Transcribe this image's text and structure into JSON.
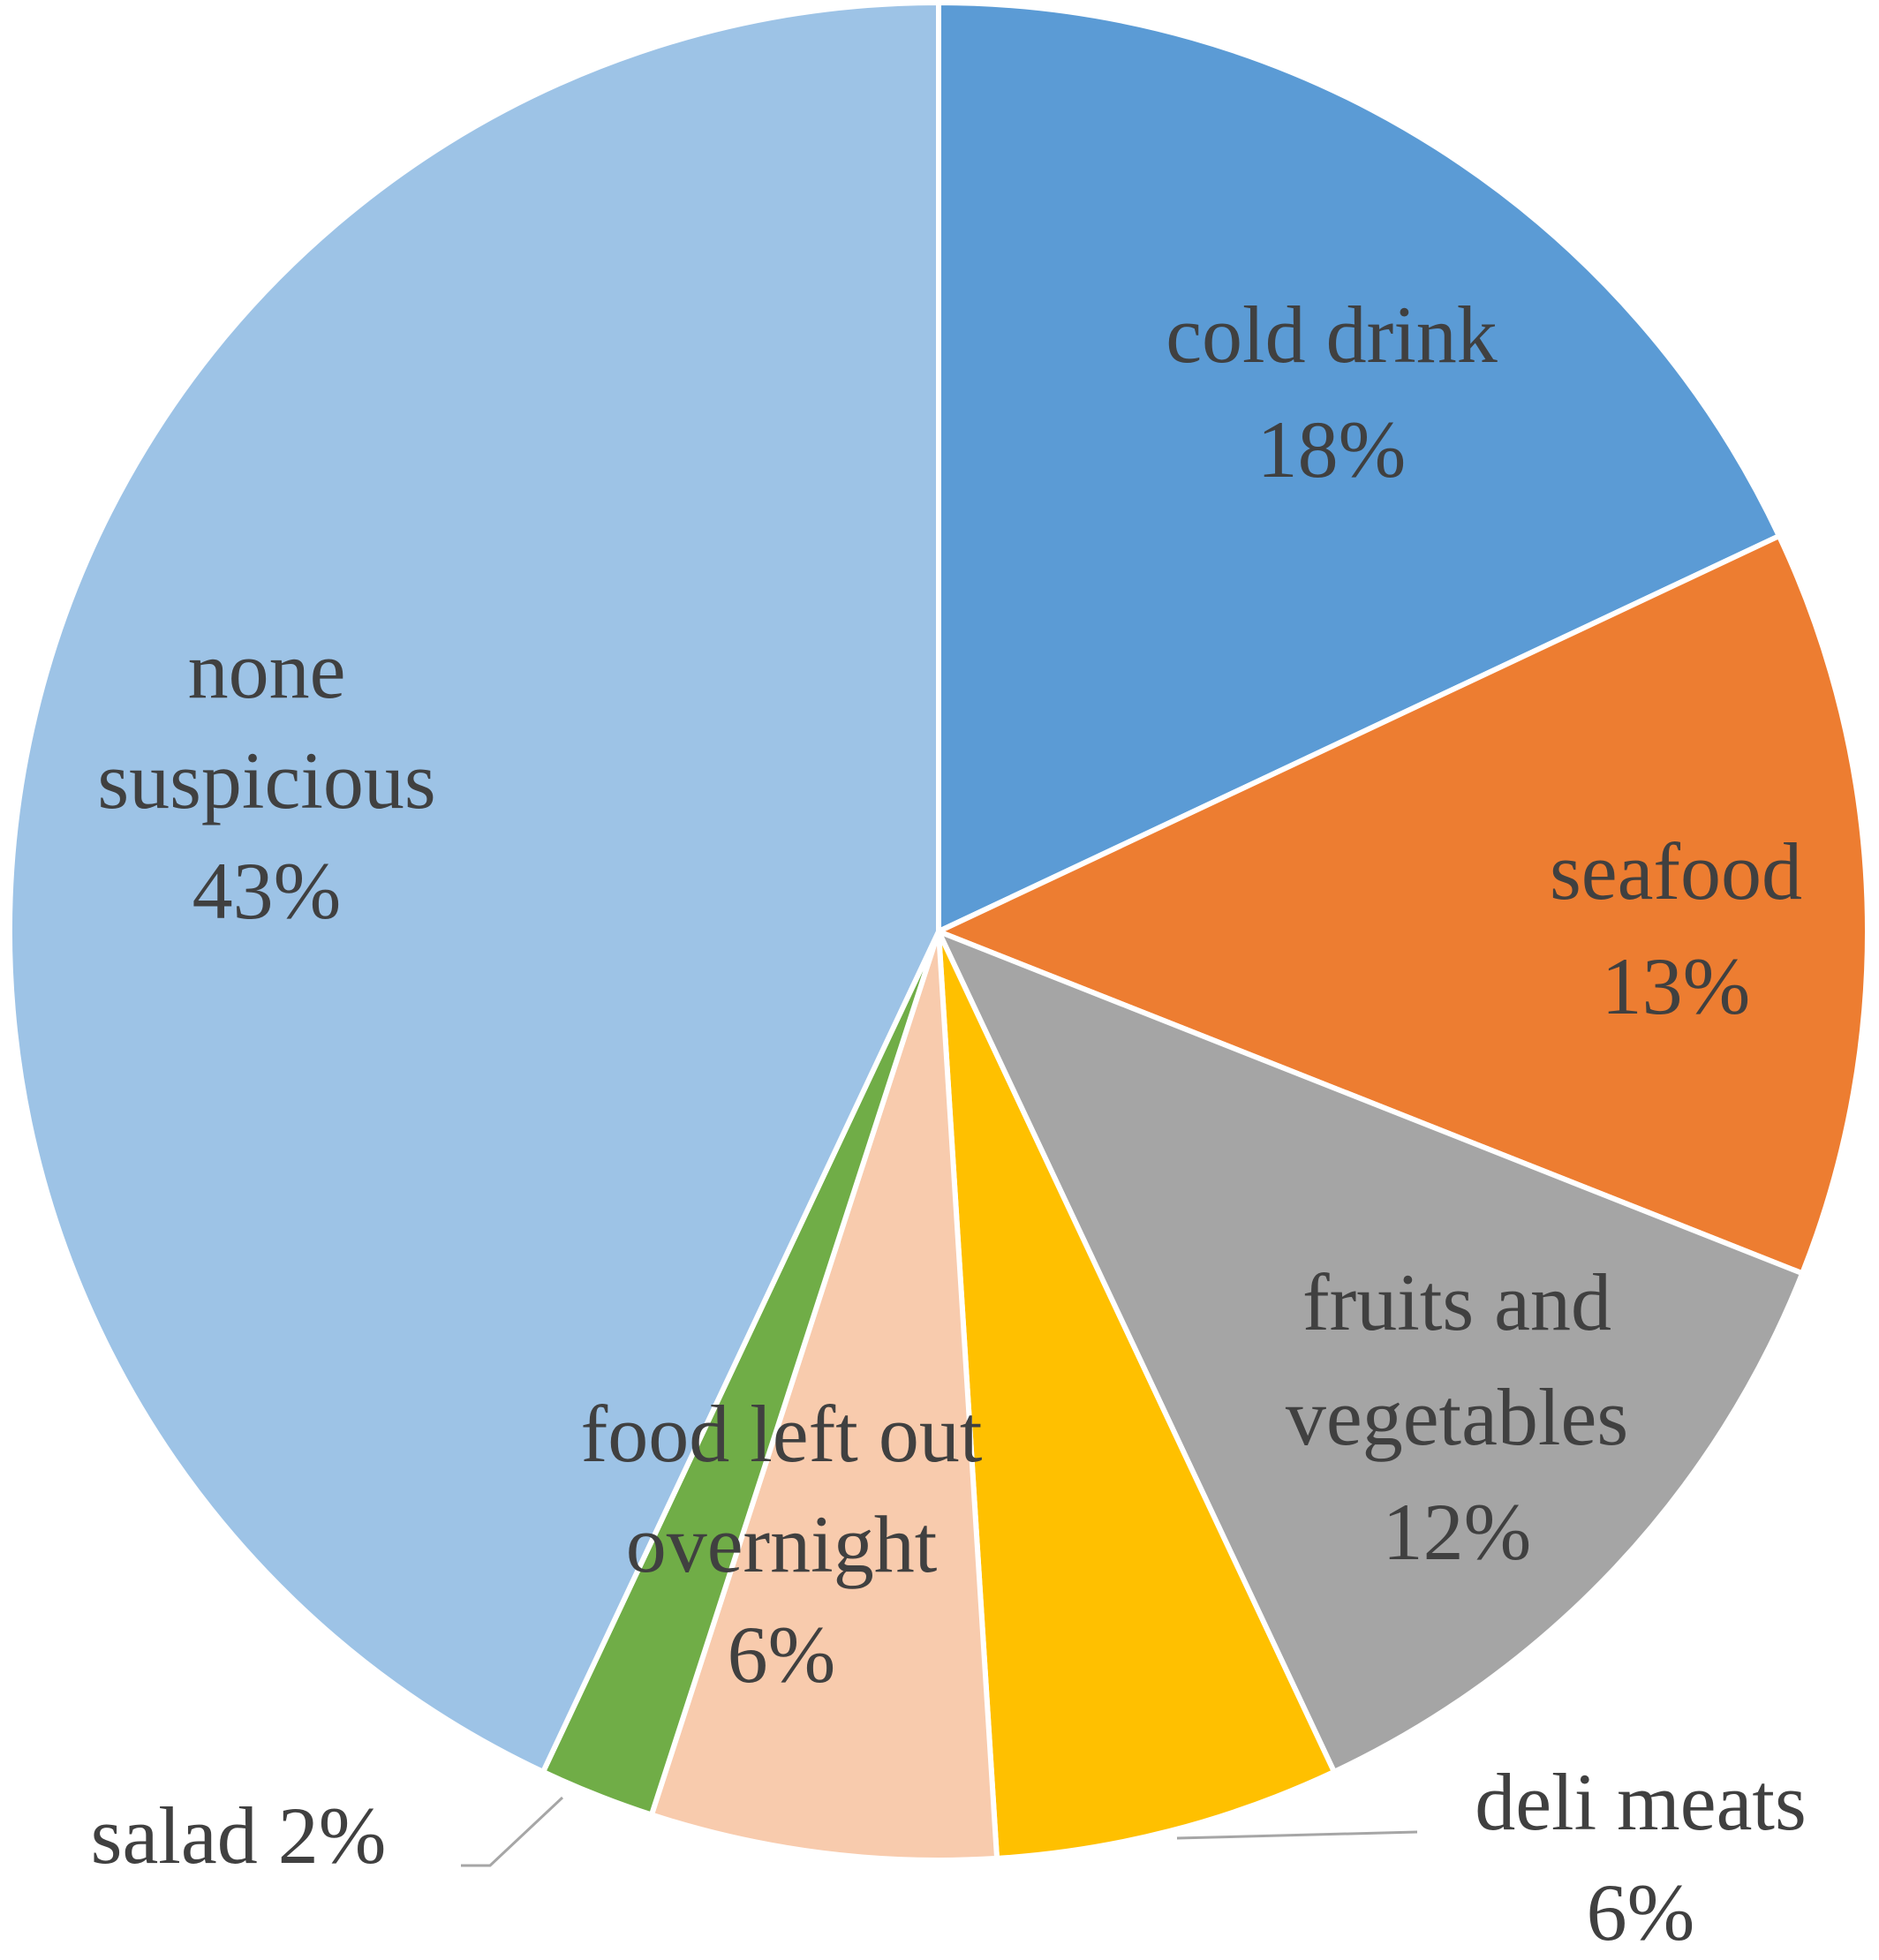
{
  "chart_data": {
    "type": "pie",
    "title": "",
    "slices": [
      {
        "name": "cold drink",
        "value": 18,
        "label": "18%",
        "color": "#5B9BD5"
      },
      {
        "name": "seafood",
        "value": 13,
        "label": "13%",
        "color": "#ED7D31"
      },
      {
        "name": "fruits and vegetables",
        "value": 12,
        "label": "12%",
        "color": "#A5A5A5"
      },
      {
        "name": "deli meats",
        "value": 6,
        "label": "6%",
        "color": "#FFC000"
      },
      {
        "name": "food left out overnight",
        "value": 6,
        "label": "6%",
        "color": "#F8CBAD"
      },
      {
        "name": "salad",
        "value": 2,
        "label": "2%",
        "color": "#70AD47"
      },
      {
        "name": "none suspicious",
        "value": 43,
        "label": "43%",
        "color": "#9DC3E6"
      }
    ],
    "start_angle": "12 o'clock",
    "direction": "clockwise",
    "label_color": "#404040",
    "legend": "none"
  }
}
